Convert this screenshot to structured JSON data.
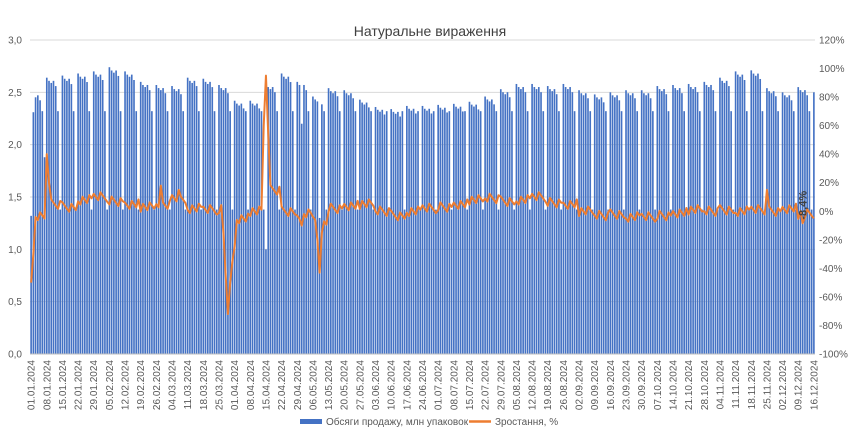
{
  "chart_data": {
    "type": "bar",
    "title": "Натуральне вираження",
    "start_date": "2024-01-01",
    "end_date": "2024-12-16",
    "date_tick_format": "DD.MM.YYYY",
    "y_left": {
      "min": 0,
      "max": 3,
      "step": 0.5,
      "ticks": [
        "0,0",
        "0,5",
        "1,0",
        "1,5",
        "2,0",
        "2,5",
        "3,0"
      ]
    },
    "y_right": {
      "min": -100,
      "max": 120,
      "step": 20,
      "ticks": [
        "-100%",
        "-80%",
        "-60%",
        "-40%",
        "-20%",
        "0%",
        "20%",
        "40%",
        "60%",
        "80%",
        "100%",
        "120%"
      ]
    },
    "x_tick_labels": [
      "01.01.2024",
      "08.01.2024",
      "15.01.2024",
      "22.01.2024",
      "29.01.2024",
      "05.02.2024",
      "12.02.2024",
      "19.02.2024",
      "26.02.2024",
      "04.03.2024",
      "11.03.2024",
      "18.03.2024",
      "25.03.2024",
      "01.04.2024",
      "08.04.2024",
      "15.04.2024",
      "22.04.2024",
      "29.04.2024",
      "06.05.2024",
      "13.05.2024",
      "20.05.2024",
      "27.05.2024",
      "03.06.2024",
      "10.06.2024",
      "17.06.2024",
      "24.06.2024",
      "01.07.2024",
      "08.07.2024",
      "15.07.2024",
      "22.07.2024",
      "29.07.2024",
      "05.08.2024",
      "12.08.2024",
      "19.08.2024",
      "26.08.2024",
      "02.09.2024",
      "09.09.2024",
      "16.09.2024",
      "23.09.2024",
      "30.09.2024",
      "07.10.2024",
      "14.10.2024",
      "21.10.2024",
      "28.10.2024",
      "04.11.2024",
      "11.11.2024",
      "18.11.2024",
      "25.11.2024",
      "02.12.2024",
      "09.12.2024",
      "16.12.2024"
    ],
    "grid": true,
    "annotation": {
      "text": "-8,4%",
      "date": "2024-12-11",
      "value": -8.4
    },
    "series": [
      {
        "name": "Обсяги продажу, млн упаковок",
        "type": "bar",
        "axis": "left",
        "color": "#4472C4",
        "weekly_pattern": [
          2.63,
          2.6,
          2.58,
          2.6,
          2.55,
          2.32,
          1.38
        ],
        "weekly_levels": [
          2.5,
          2.64,
          2.66,
          2.68,
          2.7,
          2.74,
          2.7,
          2.6,
          2.57,
          2.56,
          2.64,
          2.63,
          2.57,
          2.42,
          2.42,
          2.58,
          2.68,
          2.6,
          2.46,
          2.54,
          2.52,
          2.43,
          2.36,
          2.34,
          2.37,
          2.37,
          2.38,
          2.39,
          2.41,
          2.46,
          2.53,
          2.58,
          2.58,
          2.56,
          2.58,
          2.52,
          2.48,
          2.5,
          2.52,
          2.52,
          2.56,
          2.57,
          2.58,
          2.6,
          2.64,
          2.7,
          2.71,
          2.54,
          2.5,
          2.55,
          2.5
        ],
        "special_values": {
          "2024-01-01": 1.32,
          "2024-01-02": 2.31,
          "2024-01-07": 1.88,
          "2024-04-15": 1.0,
          "2024-05-01": 2.2,
          "2024-05-09": 1.3,
          "2024-12-16": 2.5
        }
      },
      {
        "name": "Зростання, %",
        "type": "line",
        "axis": "right",
        "color": "#ED7D31",
        "weekly_levels": [
          -4,
          5,
          3,
          8,
          10,
          7,
          5,
          3,
          5,
          8,
          2,
          1,
          1,
          -5,
          0,
          15,
          0,
          -2,
          -6,
          2,
          4,
          5,
          0,
          -3,
          0,
          2,
          3,
          5,
          8,
          9,
          7,
          8,
          10,
          6,
          5,
          0,
          -3,
          -2,
          -4,
          -4,
          -3,
          -1,
          1,
          0,
          1,
          0,
          1,
          0,
          2,
          -2,
          -5
        ],
        "special_values": {
          "2024-01-01": -50,
          "2024-01-02": -30,
          "2024-01-08": 40,
          "2024-01-09": 20,
          "2024-02-28": 18,
          "2024-03-07": 15,
          "2024-03-27": -15,
          "2024-03-28": -45,
          "2024-03-29": -72,
          "2024-03-30": -50,
          "2024-03-31": -35,
          "2024-04-01": -25,
          "2024-04-14": 60,
          "2024-04-15": 95,
          "2024-04-16": 55,
          "2024-05-01": -10,
          "2024-05-08": -20,
          "2024-05-09": -43,
          "2024-05-10": -15,
          "2024-11-25": 15,
          "2024-12-11": -8.4
        }
      }
    ]
  }
}
